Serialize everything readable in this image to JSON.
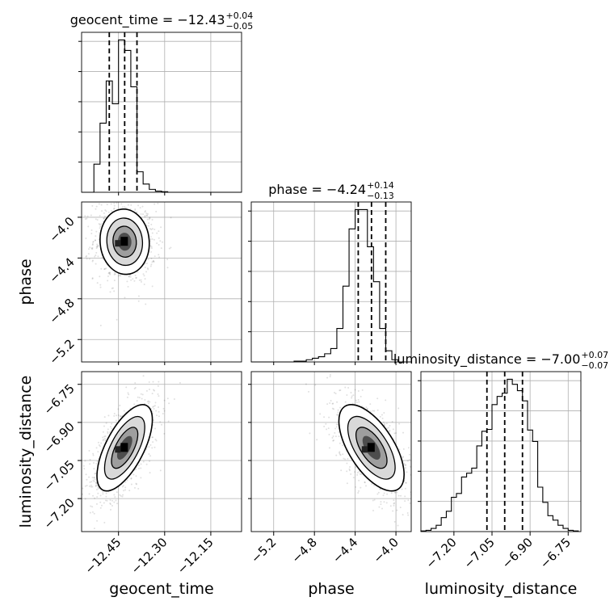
{
  "chart_data": {
    "type": "corner",
    "parameters": [
      "geocent_time",
      "phase",
      "luminosity_distance"
    ],
    "axis_labels": {
      "x": [
        "geocent_time",
        "phase",
        "luminosity_distance"
      ],
      "y": [
        "",
        "phase",
        "luminosity_distance"
      ]
    },
    "ranges": {
      "geocent_time": [
        -12.57,
        -12.05
      ],
      "phase": [
        -5.42,
        -3.85
      ],
      "luminosity_distance": [
        -7.33,
        -6.7
      ]
    },
    "ticks": {
      "geocent_time": [
        -12.45,
        -12.3,
        -12.15
      ],
      "phase_x": [
        -5.2,
        -4.8,
        -4.4,
        -4.0
      ],
      "phase_y": [
        -4.0,
        -4.4,
        -4.8,
        -5.2
      ],
      "luminosity_distance": [
        -7.2,
        -7.05,
        -6.9,
        -6.75
      ]
    },
    "tick_labels": {
      "geocent_time": [
        "−12.45",
        "−12.30",
        "−12.15"
      ],
      "phase_x": [
        "−5.2",
        "−4.8",
        "−4.4",
        "−4.0"
      ],
      "phase_y": [
        "−4.0",
        "−4.4",
        "−4.8",
        "−5.2"
      ],
      "luminosity_distance": [
        "−7.20",
        "−7.05",
        "−6.90",
        "−6.75"
      ]
    },
    "titles": [
      {
        "param": "geocent_time",
        "main": "geocent_time = −12.43",
        "sup": "+0.04",
        "sub": "−0.05"
      },
      {
        "param": "phase",
        "main": "phase = −4.24",
        "sup": "+0.14",
        "sub": "−0.13"
      },
      {
        "param": "luminosity_distance",
        "main": "luminosity_distance = −7.00",
        "sup": "+0.07",
        "sub": "−0.07"
      }
    ],
    "quantiles": {
      "geocent_time": [
        -12.48,
        -12.43,
        -12.39
      ],
      "phase": [
        -4.37,
        -4.24,
        -4.1
      ],
      "luminosity_distance": [
        -7.07,
        -7.0,
        -6.93
      ]
    },
    "histograms": {
      "geocent_time": {
        "edges": [
          -12.57,
          -12.55,
          -12.53,
          -12.51,
          -12.49,
          -12.47,
          -12.45,
          -12.43,
          -12.41,
          -12.39,
          -12.37,
          -12.35,
          -12.33,
          -12.31,
          -12.29,
          -12.27,
          -12.25,
          -12.23,
          -12.21,
          -12.19,
          -12.17,
          -12.15,
          -12.13,
          -12.11,
          -12.09,
          -12.07,
          -12.05
        ],
        "counts": [
          0,
          0,
          48,
          118,
          190,
          151,
          260,
          242,
          180,
          35,
          14,
          5,
          2,
          1,
          0,
          0,
          0,
          0,
          0,
          0,
          0,
          0,
          0,
          0,
          0,
          0
        ]
      },
      "phase": {
        "edges": [
          -5.42,
          -5.36,
          -5.3,
          -5.24,
          -5.18,
          -5.12,
          -5.06,
          -5.0,
          -4.94,
          -4.88,
          -4.82,
          -4.76,
          -4.7,
          -4.64,
          -4.58,
          -4.52,
          -4.46,
          -4.4,
          -4.34,
          -4.28,
          -4.22,
          -4.16,
          -4.1,
          -4.04,
          -3.98,
          -3.92,
          -3.86
        ],
        "counts": [
          0,
          0,
          0,
          0,
          0,
          0,
          0,
          1,
          1,
          3,
          5,
          7,
          11,
          18,
          45,
          102,
          179,
          205,
          205,
          155,
          108,
          45,
          15,
          3,
          0,
          0
        ]
      },
      "luminosity_distance": {
        "edges": [
          -7.33,
          -7.31,
          -7.29,
          -7.27,
          -7.25,
          -7.23,
          -7.21,
          -7.19,
          -7.17,
          -7.15,
          -7.13,
          -7.11,
          -7.09,
          -7.07,
          -7.05,
          -7.03,
          -7.01,
          -6.99,
          -6.97,
          -6.95,
          -6.93,
          -6.91,
          -6.89,
          -6.87,
          -6.85,
          -6.83,
          -6.81,
          -6.79,
          -6.77,
          -6.75,
          -6.73,
          -6.71
        ],
        "counts": [
          1,
          2,
          5,
          10,
          22,
          32,
          54,
          60,
          86,
          92,
          100,
          135,
          158,
          161,
          200,
          213,
          218,
          240,
          232,
          222,
          206,
          160,
          142,
          70,
          46,
          25,
          18,
          10,
          5,
          2,
          1
        ]
      }
    },
    "pairs": [
      {
        "x": "geocent_time",
        "y": "phase",
        "center": [
          -12.43,
          -4.24
        ],
        "sigma": [
          0.04,
          0.16
        ],
        "correlation": -0.05
      },
      {
        "x": "geocent_time",
        "y": "luminosity_distance",
        "center": [
          -12.43,
          -7.0
        ],
        "sigma": [
          0.045,
          0.085
        ],
        "correlation": 0.65
      },
      {
        "x": "phase",
        "y": "luminosity_distance",
        "center": [
          -4.24,
          -7.0
        ],
        "sigma": [
          0.16,
          0.085
        ],
        "correlation": -0.62
      }
    ],
    "grid": true
  }
}
